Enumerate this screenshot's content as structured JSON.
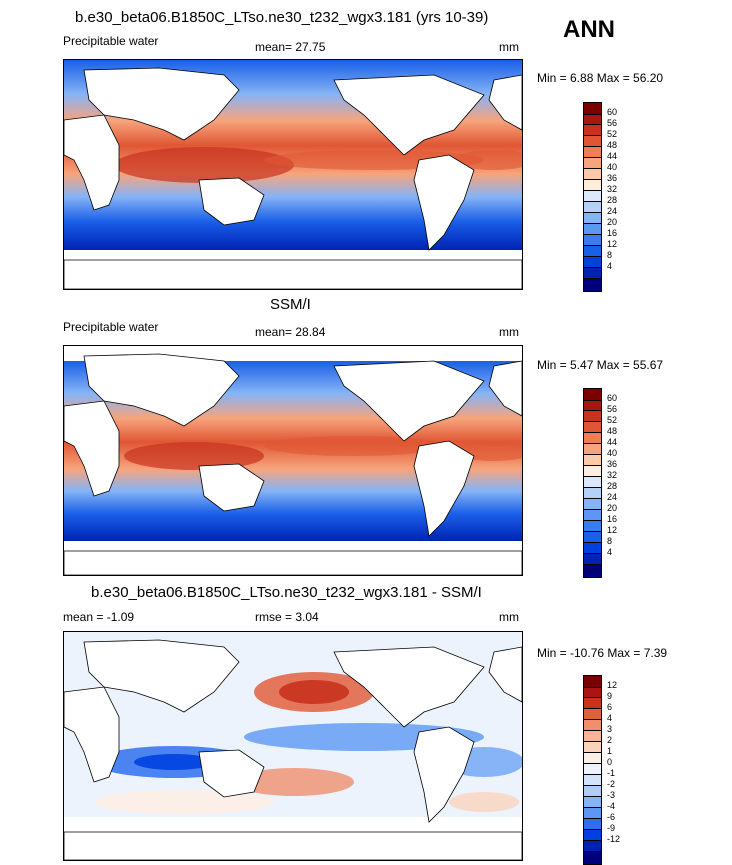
{
  "season": "ANN",
  "colors": {
    "abs_scale": [
      "#00007a",
      "#0022b4",
      "#0040e0",
      "#1a5fe8",
      "#3a7bf0",
      "#5c97f3",
      "#86b4f6",
      "#b2d2f8",
      "#dbe9fb",
      "#ffeedd",
      "#fccaa6",
      "#f7a47c",
      "#ef7d56",
      "#e05634",
      "#c8321e",
      "#a81512",
      "#7c0000"
    ],
    "diff_scale": [
      "#00007a",
      "#0022b4",
      "#0040e0",
      "#2f6fee",
      "#5c97f3",
      "#86b4f6",
      "#aecdf8",
      "#d2e4fb",
      "#ecf3fd",
      "#fdeee5",
      "#fad3bd",
      "#f7b597",
      "#ef8f6d",
      "#e25f3e",
      "#c8321e",
      "#a81512",
      "#7c0000"
    ],
    "land": "#ffffff",
    "missing": "#ffffff"
  },
  "panels": [
    {
      "title": "b.e30_beta06.B1850C_LTso.ne30_t232_wgx3.181 (yrs 10-39)",
      "left_label": "Precipitable water",
      "center_label": "mean=  27.75",
      "units": "mm",
      "minmax": "Min =   6.88 Max =  56.20",
      "levels": [
        "60",
        "56",
        "52",
        "48",
        "44",
        "40",
        "36",
        "32",
        "28",
        "24",
        "20",
        "16",
        "12",
        "8",
        "4"
      ]
    },
    {
      "title": "SSM/I",
      "left_label": "Precipitable water",
      "center_label": "mean=  28.84",
      "units": "mm",
      "minmax": "Min =   5.47 Max =  55.67",
      "levels": [
        "60",
        "56",
        "52",
        "48",
        "44",
        "40",
        "36",
        "32",
        "28",
        "24",
        "20",
        "16",
        "12",
        "8",
        "4"
      ]
    },
    {
      "title": "b.e30_beta06.B1850C_LTso.ne30_t232_wgx3.181 - SSM/I",
      "left_label": "mean =  -1.09",
      "center_label": "rmse =   3.04",
      "units": "mm",
      "minmax": "Min = -10.76 Max =   7.39",
      "levels": [
        "12",
        "9",
        "6",
        "4",
        "3",
        "2",
        "1",
        "0",
        "-1",
        "-2",
        "-3",
        "-4",
        "-6",
        "-9",
        "-12"
      ]
    }
  ],
  "chart_data": [
    {
      "type": "heatmap",
      "title": "b.e30_beta06.B1850C_LTso.ne30_t232_wgx3.181 (yrs 10-39)",
      "variable": "Precipitable water",
      "units": "mm",
      "mean": 27.75,
      "min": 6.88,
      "max": 56.2,
      "contour_levels": [
        4,
        8,
        12,
        16,
        20,
        24,
        28,
        32,
        36,
        40,
        44,
        48,
        52,
        56,
        60
      ],
      "projection": "global map centred on Pacific"
    },
    {
      "type": "heatmap",
      "title": "SSM/I",
      "variable": "Precipitable water",
      "units": "mm",
      "mean": 28.84,
      "min": 5.47,
      "max": 55.67,
      "contour_levels": [
        4,
        8,
        12,
        16,
        20,
        24,
        28,
        32,
        36,
        40,
        44,
        48,
        52,
        56,
        60
      ],
      "projection": "global map centred on Pacific"
    },
    {
      "type": "heatmap",
      "title": "b.e30_beta06.B1850C_LTso.ne30_t232_wgx3.181 - SSM/I",
      "units": "mm",
      "mean": -1.09,
      "rmse": 3.04,
      "min": -10.76,
      "max": 7.39,
      "contour_levels": [
        -12,
        -9,
        -6,
        -4,
        -3,
        -2,
        -1,
        0,
        1,
        2,
        3,
        4,
        6,
        9,
        12
      ],
      "projection": "global map centred on Pacific"
    }
  ]
}
